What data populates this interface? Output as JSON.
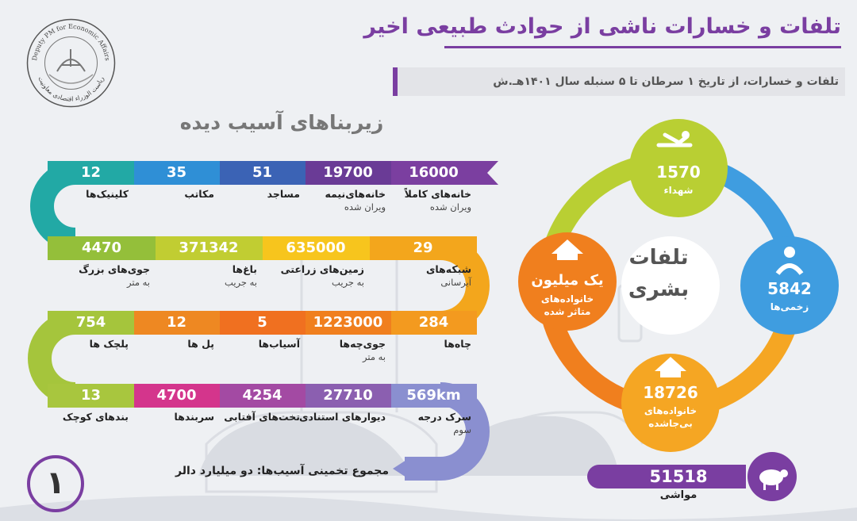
{
  "header": {
    "title": "تلفات و خسارات ناشی از حوادث طبیعی اخیر",
    "subtitle": "تلفات و خسارات، از تاریخ ۱ سرطان تا ۵ سنبله سال ۱۴۰۱هـ.ش"
  },
  "seal": {
    "text_top": "Deputy PM for Economic Affairs",
    "text_bottom": "ریاست الوزراء اقتصادی معاونیت"
  },
  "infra": {
    "title": "زیربناهای آسیب دیده",
    "rows": [
      {
        "items": [
          {
            "value": "16000",
            "label": "خانه‌های کاملاً",
            "sub": "ویران شده",
            "color": "#7b3fa0"
          },
          {
            "value": "19700",
            "label": "خانه‌های‌نیمه",
            "sub": "ویران شده",
            "color": "#6a3b96"
          },
          {
            "value": "51",
            "label": "مساجد",
            "sub": "",
            "color": "#3b63b5"
          },
          {
            "value": "35",
            "label": "مکاتب",
            "sub": "",
            "color": "#2f8fd6"
          },
          {
            "value": "12",
            "label": "کلینیک‌ها",
            "sub": "",
            "color": "#22a9a5"
          }
        ]
      },
      {
        "items": [
          {
            "value": "29",
            "label": "شبکه‌های",
            "sub": "آبرسانی",
            "color": "#f3a61c"
          },
          {
            "value": "635000",
            "label": "زمین‌های زراعتی",
            "sub": "به جریب",
            "color": "#f7c51d"
          },
          {
            "value": "371342",
            "label": "باغ‌ها",
            "sub": "به جریب",
            "color": "#c1cd32"
          },
          {
            "value": "4470",
            "label": "جوی‌های بزرگ",
            "sub": "به متر",
            "color": "#94bf3a"
          }
        ]
      },
      {
        "items": [
          {
            "value": "284",
            "label": "چاه‌ها",
            "sub": "",
            "color": "#f39a1f"
          },
          {
            "value": "1223000",
            "label": "جوی‌چه‌ها",
            "sub": "به متر",
            "color": "#f07f1e"
          },
          {
            "value": "5",
            "label": "آسیاب‌ها",
            "sub": "",
            "color": "#f07020"
          },
          {
            "value": "12",
            "label": "پل ها",
            "sub": "",
            "color": "#ee8822"
          },
          {
            "value": "754",
            "label": "پلچک ها",
            "sub": "",
            "color": "#a5c53c"
          }
        ]
      },
      {
        "items": [
          {
            "value": "569km",
            "label": "سرک درجه",
            "sub": "سوم",
            "color": "#8a8fd0"
          },
          {
            "value": "27710",
            "label": "دیوارهای استنادی",
            "sub": "",
            "color": "#8b5fb0"
          },
          {
            "value": "4254",
            "label": "تخت‌های آفتابی",
            "sub": "",
            "color": "#a34aa3"
          },
          {
            "value": "4700",
            "label": "سربندها",
            "sub": "",
            "color": "#d4358c"
          },
          {
            "value": "13",
            "label": "بندهای کوچک",
            "sub": "",
            "color": "#a8c63e"
          }
        ]
      }
    ],
    "total": "مجموع تخمینی آسیب‌ها: دو میلیارد دالر"
  },
  "casualties": {
    "center_line1": "تلفات",
    "center_line2": "بشری",
    "martyrs": {
      "value": "1570",
      "label": "شهداء",
      "color": "#b9cf33"
    },
    "injured": {
      "value": "5842",
      "label": "زخمی‌ها",
      "color": "#3f9de0"
    },
    "homeless": {
      "value": "18726",
      "label1": "خانواده‌های",
      "label2": "بی‌جاشده",
      "color": "#f5a623"
    },
    "affected": {
      "value": "یک میلیون",
      "label1": "خانواده‌های",
      "label2": "متاثر شده",
      "color": "#f07f1e"
    }
  },
  "livestock": {
    "value": "51518",
    "label": "مواشی"
  },
  "page_number": "۱"
}
